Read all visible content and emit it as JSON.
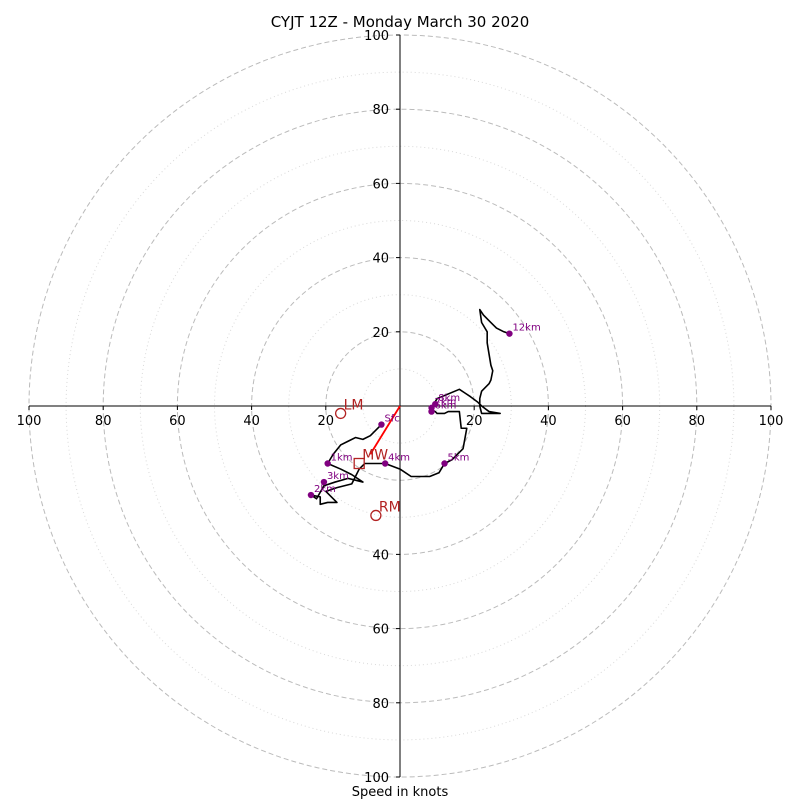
{
  "chart_data": {
    "type": "scatter",
    "title": "CYJT 12Z - Monday March 30 2020",
    "xlabel": "Speed in knots",
    "ylabel": "",
    "xlim": [
      -100,
      100
    ],
    "ylim": [
      -100,
      100
    ],
    "rings": [
      20,
      40,
      60,
      80,
      100
    ],
    "minor_rings": [
      10,
      30,
      50,
      70,
      90
    ],
    "x_ticks": [
      {
        "value": -100,
        "label": "100"
      },
      {
        "value": -80,
        "label": "80"
      },
      {
        "value": -60,
        "label": "60"
      },
      {
        "value": -40,
        "label": "40"
      },
      {
        "value": -20,
        "label": "20"
      },
      {
        "value": 20,
        "label": "20"
      },
      {
        "value": 40,
        "label": "40"
      },
      {
        "value": 60,
        "label": "60"
      },
      {
        "value": 80,
        "label": "80"
      },
      {
        "value": 100,
        "label": "100"
      }
    ],
    "y_ticks": [
      {
        "value": 100,
        "label": "100"
      },
      {
        "value": 80,
        "label": "80"
      },
      {
        "value": 60,
        "label": "60"
      },
      {
        "value": 40,
        "label": "40"
      },
      {
        "value": 20,
        "label": "20"
      },
      {
        "value": -40,
        "label": "40"
      },
      {
        "value": -60,
        "label": "60"
      },
      {
        "value": -80,
        "label": "80"
      },
      {
        "value": -100,
        "label": "100"
      }
    ],
    "hodograph_trace": [
      [
        -5,
        -5
      ],
      [
        -8,
        -8
      ],
      [
        -10,
        -9
      ],
      [
        -12,
        -8.5
      ],
      [
        -14,
        -9.5
      ],
      [
        -16,
        -10.5
      ],
      [
        -18,
        -13
      ],
      [
        -19.5,
        -15.5
      ],
      [
        -16,
        -17
      ],
      [
        -13,
        -18.5
      ],
      [
        -10,
        -20.5
      ],
      [
        -12,
        -20
      ],
      [
        -14,
        -19.5
      ],
      [
        -17.5,
        -20.5
      ],
      [
        -20.5,
        -21.5
      ],
      [
        -22.5,
        -25
      ],
      [
        -24,
        -24
      ],
      [
        -21.5,
        -24.5
      ],
      [
        -21.5,
        -26.5
      ],
      [
        -19.5,
        -26
      ],
      [
        -17,
        -26
      ],
      [
        -20,
        -23
      ],
      [
        -17,
        -22
      ],
      [
        -13,
        -21
      ],
      [
        -11,
        -17
      ],
      [
        -9.5,
        -15.5
      ],
      [
        -4,
        -15.5
      ],
      [
        0,
        -17
      ],
      [
        3,
        -19
      ],
      [
        8,
        -19
      ],
      [
        10.5,
        -18
      ],
      [
        12,
        -15.5
      ],
      [
        14,
        -14.5
      ],
      [
        17,
        -11.5
      ],
      [
        18,
        -6
      ],
      [
        16.5,
        -6
      ],
      [
        16,
        -1.5
      ],
      [
        13,
        -1.5
      ],
      [
        12,
        -2
      ],
      [
        10,
        -2
      ],
      [
        9.5,
        -1.5
      ],
      [
        8.5,
        -1
      ],
      [
        8.5,
        -0.5
      ],
      [
        10,
        2
      ],
      [
        16,
        4.5
      ],
      [
        17.5,
        3.5
      ],
      [
        19,
        2.5
      ],
      [
        21,
        1
      ],
      [
        22,
        0
      ],
      [
        24,
        -1.5
      ],
      [
        27,
        -2
      ],
      [
        22,
        -2
      ],
      [
        21.5,
        0
      ],
      [
        21.5,
        2
      ],
      [
        22,
        4
      ],
      [
        24,
        6
      ],
      [
        24.5,
        7
      ],
      [
        25,
        9.5
      ],
      [
        24.5,
        11
      ],
      [
        24,
        14
      ],
      [
        23.5,
        17
      ],
      [
        23.5,
        20
      ],
      [
        22,
        22.5
      ],
      [
        21.5,
        26
      ],
      [
        22.5,
        24.5
      ],
      [
        24.5,
        22.5
      ],
      [
        26,
        21
      ],
      [
        28,
        20
      ],
      [
        29.5,
        19.5
      ]
    ],
    "storm_motion_line": [
      [
        -8,
        -13
      ],
      [
        0,
        0
      ]
    ],
    "height_points": [
      {
        "label": "Sfc",
        "x": -5,
        "y": -5
      },
      {
        "label": "1km",
        "x": -19.5,
        "y": -15.5
      },
      {
        "label": "2km",
        "x": -24,
        "y": -24
      },
      {
        "label": "3km",
        "x": -20.5,
        "y": -20.5
      },
      {
        "label": "4km",
        "x": -4,
        "y": -15.5
      },
      {
        "label": "5km",
        "x": 12,
        "y": -15.5
      },
      {
        "label": "6km",
        "x": 8.5,
        "y": -1.5
      },
      {
        "label": "7km",
        "x": 8.5,
        "y": -0.5
      },
      {
        "label": "8km",
        "x": 9.5,
        "y": 0.5
      },
      {
        "label": "12km",
        "x": 29.5,
        "y": 19.5
      }
    ],
    "storm_markers": [
      {
        "label": "LM",
        "x": -16,
        "y": -2,
        "shape": "circle"
      },
      {
        "label": "RM",
        "x": -6.5,
        "y": -29.5,
        "shape": "circle"
      },
      {
        "label": "MW",
        "x": -11,
        "y": -15.5,
        "shape": "square"
      }
    ],
    "colors": {
      "grid": "#bbbbbb",
      "minor_grid": "#d9d9d9",
      "trace": "#000000",
      "storm_line": "#ff0000",
      "points": "#800080",
      "markers": "#b22222"
    }
  }
}
